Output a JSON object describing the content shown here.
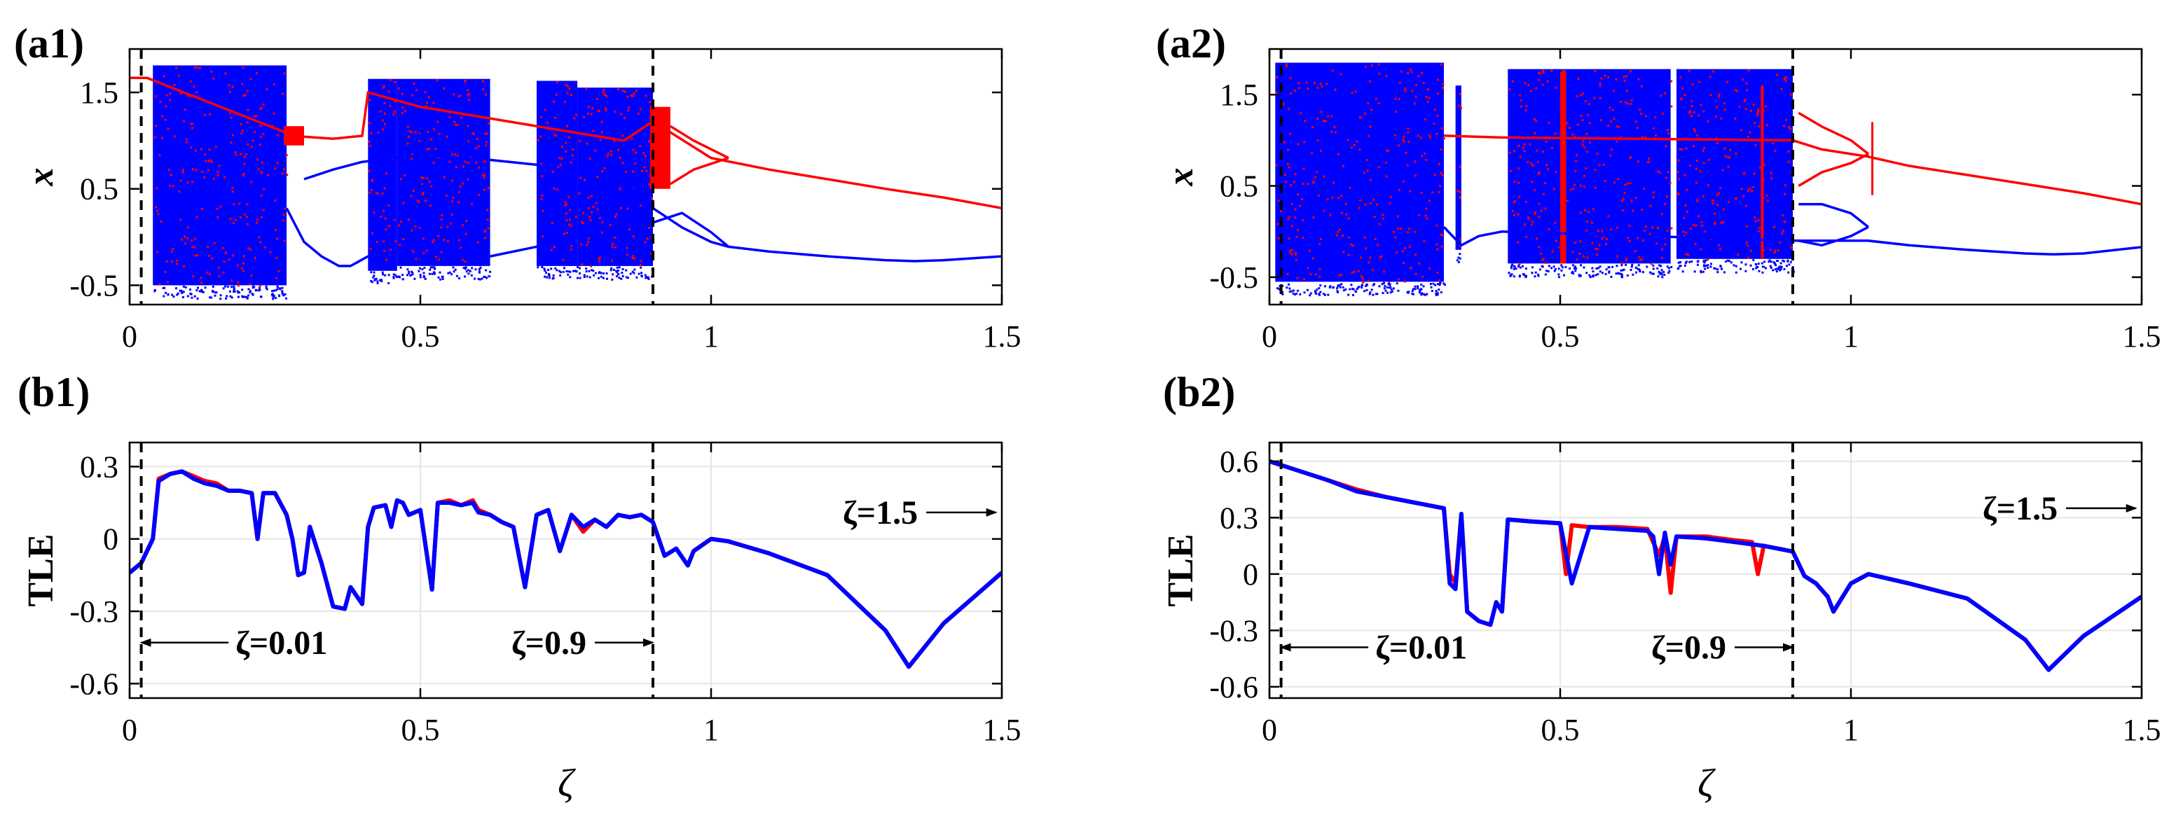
{
  "colors": {
    "series_a": "#ff0000",
    "series_b": "#0000ff",
    "grid": "#e6e6e6",
    "axis": "#000000"
  },
  "chart_data": [
    {
      "id": "a1",
      "label": "(a1)",
      "type": "scatter",
      "description_kind": "bifurcation diagram",
      "xlabel": "",
      "ylabel": "x",
      "xlim": [
        0,
        1.5
      ],
      "ylim": [
        -0.7,
        1.95
      ],
      "xticks": [
        0,
        0.5,
        1,
        1.5
      ],
      "xtick_labels": [
        "0",
        "0.5",
        "1",
        "1.5"
      ],
      "yticks": [
        -0.5,
        0.5,
        1.5
      ],
      "ytick_labels": [
        "-0.5",
        "0.5",
        "1.5"
      ],
      "grid": false,
      "dashed_markers": [
        0.02,
        0.9
      ],
      "chaos_bands": [
        [
          0.04,
          0.27,
          -0.5,
          1.78
        ],
        [
          0.41,
          0.46,
          -0.35,
          1.64
        ],
        [
          0.46,
          0.5,
          -0.3,
          1.64
        ],
        [
          0.5,
          0.62,
          -0.3,
          1.64
        ],
        [
          0.7,
          0.77,
          -0.3,
          1.62
        ],
        [
          0.77,
          0.9,
          -0.3,
          1.55
        ]
      ],
      "red_bands": [
        [
          0.265,
          0.3,
          0.95,
          1.15
        ],
        [
          0.895,
          0.93,
          0.5,
          1.35
        ]
      ],
      "series": [
        {
          "name": "red_branch_upper",
          "color_key": "series_a",
          "x": [
            0,
            0.03,
            0.27,
            0.3,
            0.35,
            0.4,
            0.41,
            0.5,
            0.6,
            0.7,
            0.75,
            0.8,
            0.85,
            0.9,
            1.0,
            1.1,
            1.2,
            1.3,
            1.4,
            1.5
          ],
          "y": [
            1.65,
            1.65,
            1.08,
            1.04,
            1.02,
            1.05,
            1.5,
            1.35,
            1.25,
            1.15,
            1.1,
            1.05,
            1.0,
            1.2,
            0.82,
            0.7,
            0.6,
            0.5,
            0.41,
            0.3
          ]
        },
        {
          "name": "red_branch_split",
          "color_key": "series_a",
          "x": [
            0.93,
            0.97,
            1.03
          ],
          "y": [
            1.15,
            1.0,
            0.82
          ]
        },
        {
          "name": "red_branch_split_low",
          "color_key": "series_a",
          "x": [
            0.93,
            0.97,
            1.03
          ],
          "y": [
            0.55,
            0.7,
            0.82
          ]
        },
        {
          "name": "blue_branch_lower",
          "color_key": "series_b",
          "x": [
            0.27,
            0.3,
            0.33,
            0.36,
            0.38,
            0.41,
            0.5,
            0.62,
            0.7,
            0.9,
            0.95,
            1.0,
            1.03,
            1.1,
            1.2,
            1.3,
            1.35,
            1.4,
            1.5
          ],
          "y": [
            0.3,
            -0.05,
            -0.2,
            -0.3,
            -0.3,
            -0.2,
            -0.1,
            -0.2,
            -0.1,
            0.3,
            0.1,
            -0.05,
            -0.1,
            -0.15,
            -0.2,
            -0.24,
            -0.25,
            -0.24,
            -0.2
          ]
        },
        {
          "name": "blue_branch_mid",
          "color_key": "series_b",
          "x": [
            0.3,
            0.35,
            0.4,
            0.5,
            0.62,
            0.7,
            0.8,
            0.9
          ],
          "y": [
            0.6,
            0.7,
            0.78,
            0.85,
            0.8,
            0.75,
            0.6,
            0.45
          ]
        },
        {
          "name": "blue_branch_split",
          "color_key": "series_b",
          "x": [
            0.9,
            0.95,
            1.0,
            1.03
          ],
          "y": [
            0.15,
            0.25,
            0.05,
            -0.1
          ]
        }
      ]
    },
    {
      "id": "a2",
      "label": "(a2)",
      "type": "scatter",
      "description_kind": "bifurcation diagram",
      "xlabel": "",
      "ylabel": "x",
      "xlim": [
        0,
        1.5
      ],
      "ylim": [
        -0.8,
        2.0
      ],
      "xticks": [
        0,
        0.5,
        1,
        1.5
      ],
      "xtick_labels": [
        "0",
        "0.5",
        "1",
        "1.5"
      ],
      "yticks": [
        -0.5,
        0.5,
        1.5
      ],
      "ytick_labels": [
        "-0.5",
        "0.5",
        "1.5"
      ],
      "grid": false,
      "dashed_markers": [
        0.02,
        0.9
      ],
      "chaos_bands": [
        [
          0.01,
          0.3,
          -0.55,
          1.85
        ],
        [
          0.32,
          0.33,
          -0.2,
          1.6
        ],
        [
          0.41,
          0.51,
          -0.35,
          1.78
        ],
        [
          0.51,
          0.69,
          -0.35,
          1.78
        ],
        [
          0.7,
          0.9,
          -0.3,
          1.78
        ]
      ],
      "red_bands": [
        [
          0.5,
          0.51,
          -0.35,
          1.75
        ],
        [
          0.845,
          0.85,
          -0.3,
          1.6
        ],
        [
          1.035,
          1.038,
          0.4,
          1.2
        ]
      ],
      "series": [
        {
          "name": "red_branch_upper",
          "color_key": "series_a",
          "x": [
            0.3,
            0.35,
            0.4,
            0.9,
            0.95,
            1.0,
            1.03,
            1.1,
            1.2,
            1.3,
            1.4,
            1.5
          ],
          "y": [
            1.05,
            1.04,
            1.03,
            1.0,
            0.9,
            0.85,
            0.82,
            0.72,
            0.62,
            0.52,
            0.42,
            0.3
          ]
        },
        {
          "name": "red_branch_split",
          "color_key": "series_a",
          "x": [
            0.91,
            0.95,
            1.0,
            1.03
          ],
          "y": [
            1.3,
            1.15,
            1.0,
            0.85
          ]
        },
        {
          "name": "red_branch_split_low",
          "color_key": "series_a",
          "x": [
            0.91,
            0.95,
            1.0,
            1.03
          ],
          "y": [
            0.5,
            0.65,
            0.75,
            0.85
          ]
        },
        {
          "name": "blue_branch_lower",
          "color_key": "series_b",
          "x": [
            0.3,
            0.33,
            0.36,
            0.4,
            0.9,
            0.95,
            1.0,
            1.03,
            1.1,
            1.2,
            1.3,
            1.35,
            1.4,
            1.5
          ],
          "y": [
            0.05,
            -0.15,
            -0.05,
            0.0,
            -0.1,
            -0.1,
            -0.1,
            -0.1,
            -0.15,
            -0.2,
            -0.24,
            -0.25,
            -0.24,
            -0.17
          ]
        },
        {
          "name": "blue_branch_split",
          "color_key": "series_b",
          "x": [
            0.91,
            0.95,
            1.0,
            1.03
          ],
          "y": [
            0.3,
            0.3,
            0.2,
            0.05
          ]
        },
        {
          "name": "blue_branch_split_low",
          "color_key": "series_b",
          "x": [
            0.91,
            0.95,
            1.0,
            1.03
          ],
          "y": [
            -0.1,
            -0.15,
            -0.05,
            0.05
          ]
        }
      ]
    },
    {
      "id": "b1",
      "label": "(b1)",
      "type": "line",
      "xlabel": "ζ",
      "ylabel": "TLE",
      "xlim": [
        0,
        1.5
      ],
      "ylim": [
        -0.66,
        0.4
      ],
      "xticks": [
        0,
        0.5,
        1,
        1.5
      ],
      "xtick_labels": [
        "0",
        "0.5",
        "1",
        "1.5"
      ],
      "yticks": [
        -0.6,
        -0.3,
        0,
        0.3
      ],
      "ytick_labels": [
        "-0.6",
        "-0.3",
        "0",
        "0.3"
      ],
      "grid": true,
      "dashed_markers": [
        0.02,
        0.9
      ],
      "annotations": [
        {
          "text": "ζ=0.01",
          "x_from": 0.17,
          "x_to": 0.02,
          "y": -0.43,
          "text_pos": "right-of-arrow"
        },
        {
          "text": "ζ=0.9",
          "x_from": 0.8,
          "x_to": 0.9,
          "y": -0.43,
          "text_pos": "left-of-arrow"
        },
        {
          "text": "ζ=1.5",
          "x_from": 1.37,
          "x_to": 1.49,
          "y": 0.11,
          "text_pos": "left-of-arrow"
        }
      ],
      "series": [
        {
          "name": "TLE_red",
          "color_key": "series_a",
          "x": [
            0,
            0.02,
            0.04,
            0.05,
            0.07,
            0.09,
            0.11,
            0.13,
            0.15,
            0.17,
            0.19,
            0.21,
            0.22,
            0.23,
            0.25,
            0.27,
            0.28,
            0.29,
            0.3,
            0.31,
            0.33,
            0.35,
            0.37,
            0.38,
            0.4,
            0.41,
            0.42,
            0.44,
            0.45,
            0.46,
            0.47,
            0.48,
            0.5,
            0.52,
            0.53,
            0.55,
            0.57,
            0.59,
            0.6,
            0.62,
            0.64,
            0.66,
            0.68,
            0.7,
            0.72,
            0.74,
            0.76,
            0.78,
            0.8,
            0.82,
            0.84,
            0.86,
            0.88,
            0.9,
            0.92,
            0.94,
            0.96,
            0.97,
            1.0,
            1.03,
            1.1,
            1.2,
            1.3,
            1.34,
            1.4,
            1.5
          ],
          "y": [
            -0.14,
            -0.1,
            0.0,
            0.25,
            0.27,
            0.28,
            0.26,
            0.24,
            0.23,
            0.2,
            0.2,
            0.19,
            0.0,
            0.19,
            0.19,
            0.1,
            0.0,
            -0.15,
            -0.14,
            0.05,
            -0.1,
            -0.28,
            -0.29,
            -0.2,
            -0.27,
            0.05,
            0.13,
            0.14,
            0.05,
            0.16,
            0.15,
            0.1,
            0.12,
            -0.21,
            0.15,
            0.16,
            0.14,
            0.16,
            0.12,
            0.1,
            0.07,
            0.05,
            -0.2,
            0.1,
            0.12,
            -0.05,
            0.1,
            0.03,
            0.08,
            0.05,
            0.1,
            0.09,
            0.1,
            0.07,
            -0.07,
            -0.04,
            -0.11,
            -0.05,
            0.0,
            -0.01,
            -0.06,
            -0.15,
            -0.38,
            -0.53,
            -0.35,
            -0.14
          ]
        },
        {
          "name": "TLE_blue",
          "color_key": "series_b",
          "x": [
            0,
            0.02,
            0.04,
            0.05,
            0.07,
            0.09,
            0.11,
            0.13,
            0.15,
            0.17,
            0.19,
            0.21,
            0.22,
            0.23,
            0.25,
            0.27,
            0.28,
            0.29,
            0.3,
            0.31,
            0.33,
            0.35,
            0.37,
            0.38,
            0.4,
            0.41,
            0.42,
            0.44,
            0.45,
            0.46,
            0.47,
            0.48,
            0.5,
            0.52,
            0.53,
            0.55,
            0.57,
            0.59,
            0.6,
            0.62,
            0.64,
            0.66,
            0.68,
            0.7,
            0.72,
            0.74,
            0.76,
            0.78,
            0.8,
            0.82,
            0.84,
            0.86,
            0.88,
            0.9,
            0.92,
            0.94,
            0.96,
            0.97,
            1.0,
            1.03,
            1.1,
            1.2,
            1.3,
            1.34,
            1.4,
            1.5
          ],
          "y": [
            -0.14,
            -0.1,
            0.0,
            0.24,
            0.27,
            0.28,
            0.25,
            0.23,
            0.22,
            0.2,
            0.2,
            0.19,
            0.0,
            0.19,
            0.19,
            0.1,
            0.0,
            -0.15,
            -0.14,
            0.05,
            -0.1,
            -0.28,
            -0.29,
            -0.2,
            -0.27,
            0.05,
            0.13,
            0.14,
            0.05,
            0.16,
            0.15,
            0.1,
            0.12,
            -0.21,
            0.15,
            0.15,
            0.14,
            0.15,
            0.11,
            0.1,
            0.07,
            0.05,
            -0.2,
            0.1,
            0.12,
            -0.05,
            0.1,
            0.05,
            0.08,
            0.05,
            0.1,
            0.09,
            0.1,
            0.07,
            -0.07,
            -0.04,
            -0.11,
            -0.05,
            0.0,
            -0.01,
            -0.06,
            -0.15,
            -0.38,
            -0.53,
            -0.35,
            -0.14
          ]
        }
      ]
    },
    {
      "id": "b2",
      "label": "(b2)",
      "type": "line",
      "xlabel": "ζ",
      "ylabel": "TLE",
      "xlim": [
        0,
        1.5
      ],
      "ylim": [
        -0.66,
        0.7
      ],
      "xticks": [
        0,
        0.5,
        1,
        1.5
      ],
      "xtick_labels": [
        "0",
        "0.5",
        "1",
        "1.5"
      ],
      "yticks": [
        -0.6,
        -0.3,
        0,
        0.3,
        0.6
      ],
      "ytick_labels": [
        "-0.6",
        "-0.3",
        "0",
        "0.3",
        "0.6"
      ],
      "grid": true,
      "dashed_markers": [
        0.02,
        0.9
      ],
      "annotations": [
        {
          "text": "ζ=0.01",
          "x_from": 0.17,
          "x_to": 0.02,
          "y": -0.39,
          "text_pos": "right-of-arrow"
        },
        {
          "text": "ζ=0.9",
          "x_from": 0.8,
          "x_to": 0.9,
          "y": -0.39,
          "text_pos": "left-of-arrow"
        },
        {
          "text": "ζ=1.5",
          "x_from": 1.37,
          "x_to": 1.49,
          "y": 0.35,
          "text_pos": "left-of-arrow"
        }
      ],
      "series": [
        {
          "name": "TLE_red",
          "color_key": "series_a",
          "x": [
            0,
            0.05,
            0.1,
            0.15,
            0.2,
            0.25,
            0.3,
            0.31,
            0.32,
            0.33,
            0.34,
            0.36,
            0.38,
            0.39,
            0.4,
            0.41,
            0.45,
            0.5,
            0.51,
            0.52,
            0.55,
            0.6,
            0.65,
            0.67,
            0.68,
            0.69,
            0.7,
            0.75,
            0.8,
            0.83,
            0.84,
            0.85,
            0.9,
            0.92,
            0.94,
            0.96,
            0.97,
            1.0,
            1.03,
            1.1,
            1.2,
            1.3,
            1.34,
            1.4,
            1.5
          ],
          "y": [
            0.6,
            0.55,
            0.5,
            0.45,
            0.41,
            0.38,
            0.35,
            0.0,
            -0.05,
            0.32,
            -0.2,
            -0.25,
            -0.27,
            -0.15,
            -0.2,
            0.29,
            0.28,
            0.27,
            0.0,
            0.26,
            0.25,
            0.25,
            0.24,
            0.1,
            0.2,
            -0.1,
            0.2,
            0.2,
            0.18,
            0.17,
            0.0,
            0.15,
            0.12,
            -0.01,
            -0.05,
            -0.12,
            -0.2,
            -0.05,
            0.0,
            -0.05,
            -0.13,
            -0.35,
            -0.51,
            -0.33,
            -0.12
          ]
        },
        {
          "name": "TLE_blue",
          "color_key": "series_b",
          "x": [
            0,
            0.05,
            0.1,
            0.15,
            0.2,
            0.25,
            0.3,
            0.31,
            0.32,
            0.33,
            0.34,
            0.36,
            0.38,
            0.39,
            0.4,
            0.41,
            0.45,
            0.5,
            0.52,
            0.55,
            0.6,
            0.65,
            0.66,
            0.67,
            0.68,
            0.69,
            0.7,
            0.75,
            0.8,
            0.85,
            0.9,
            0.92,
            0.94,
            0.96,
            0.97,
            1.0,
            1.03,
            1.1,
            1.2,
            1.3,
            1.34,
            1.4,
            1.5
          ],
          "y": [
            0.6,
            0.55,
            0.5,
            0.44,
            0.41,
            0.38,
            0.35,
            -0.05,
            -0.08,
            0.32,
            -0.2,
            -0.25,
            -0.27,
            -0.15,
            -0.2,
            0.29,
            0.28,
            0.27,
            -0.05,
            0.25,
            0.24,
            0.23,
            0.2,
            0.0,
            0.22,
            0.05,
            0.2,
            0.19,
            0.17,
            0.15,
            0.12,
            -0.01,
            -0.05,
            -0.12,
            -0.2,
            -0.05,
            0.0,
            -0.05,
            -0.13,
            -0.35,
            -0.51,
            -0.33,
            -0.12
          ]
        }
      ]
    }
  ]
}
